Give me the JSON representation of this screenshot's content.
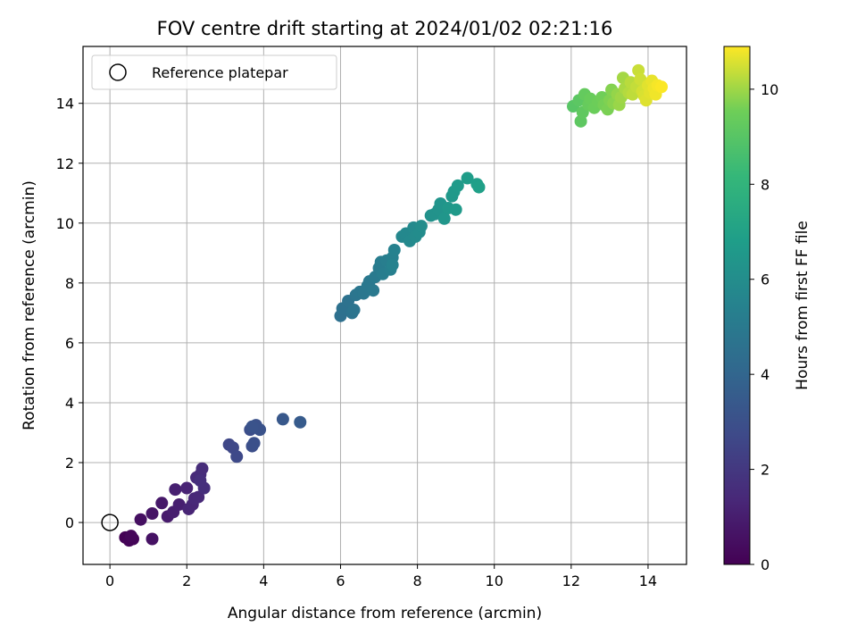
{
  "chart_data": {
    "type": "scatter",
    "title": "FOV centre drift starting at 2024/01/02 02:21:16",
    "xlabel": "Angular distance from reference (arcmin)",
    "ylabel": "Rotation from reference (arcmin)",
    "xlim": [
      -0.7,
      15.0
    ],
    "ylim": [
      -1.4,
      15.9
    ],
    "xticks": [
      0,
      2,
      4,
      6,
      8,
      10,
      12,
      14
    ],
    "yticks": [
      0,
      2,
      4,
      6,
      8,
      10,
      12,
      14
    ],
    "grid": true,
    "legend": {
      "placement": "top-left",
      "entries": [
        "Reference platepar"
      ]
    },
    "reference_point": {
      "x": 0,
      "y": 0
    },
    "colorbar": {
      "label": "Hours from first FF file",
      "range": [
        0,
        10.9
      ],
      "ticks": [
        0,
        2,
        4,
        6,
        8,
        10
      ],
      "colormap": "viridis"
    },
    "points": [
      {
        "x": 0.4,
        "y": -0.5,
        "h": 0.05
      },
      {
        "x": 0.5,
        "y": -0.6,
        "h": 0.1
      },
      {
        "x": 0.6,
        "y": -0.55,
        "h": 0.15
      },
      {
        "x": 0.55,
        "y": -0.45,
        "h": 0.2
      },
      {
        "x": 0.8,
        "y": 0.1,
        "h": 0.5
      },
      {
        "x": 1.1,
        "y": -0.55,
        "h": 0.6
      },
      {
        "x": 1.1,
        "y": 0.3,
        "h": 0.7
      },
      {
        "x": 1.35,
        "y": 0.65,
        "h": 0.8
      },
      {
        "x": 1.5,
        "y": 0.2,
        "h": 0.9
      },
      {
        "x": 1.65,
        "y": 0.35,
        "h": 1.0
      },
      {
        "x": 1.8,
        "y": 0.6,
        "h": 1.05
      },
      {
        "x": 1.7,
        "y": 1.1,
        "h": 1.1
      },
      {
        "x": 2.0,
        "y": 1.15,
        "h": 1.2
      },
      {
        "x": 2.05,
        "y": 0.45,
        "h": 1.25
      },
      {
        "x": 2.15,
        "y": 0.6,
        "h": 1.3
      },
      {
        "x": 2.2,
        "y": 0.8,
        "h": 1.35
      },
      {
        "x": 2.3,
        "y": 0.85,
        "h": 1.4
      },
      {
        "x": 2.25,
        "y": 1.5,
        "h": 1.45
      },
      {
        "x": 2.35,
        "y": 1.6,
        "h": 1.5
      },
      {
        "x": 2.4,
        "y": 1.8,
        "h": 1.55
      },
      {
        "x": 2.45,
        "y": 1.15,
        "h": 1.6
      },
      {
        "x": 2.35,
        "y": 1.4,
        "h": 1.65
      },
      {
        "x": 3.1,
        "y": 2.6,
        "h": 2.6
      },
      {
        "x": 3.2,
        "y": 2.5,
        "h": 2.65
      },
      {
        "x": 3.3,
        "y": 2.2,
        "h": 2.7
      },
      {
        "x": 3.65,
        "y": 3.1,
        "h": 2.9
      },
      {
        "x": 3.7,
        "y": 2.55,
        "h": 2.95
      },
      {
        "x": 3.75,
        "y": 2.65,
        "h": 3.0
      },
      {
        "x": 3.8,
        "y": 3.25,
        "h": 3.05
      },
      {
        "x": 3.9,
        "y": 3.1,
        "h": 3.1
      },
      {
        "x": 3.7,
        "y": 3.2,
        "h": 3.15
      },
      {
        "x": 4.5,
        "y": 3.45,
        "h": 3.35
      },
      {
        "x": 4.95,
        "y": 3.35,
        "h": 3.5
      },
      {
        "x": 6.0,
        "y": 6.9,
        "h": 4.5
      },
      {
        "x": 6.05,
        "y": 7.15,
        "h": 4.55
      },
      {
        "x": 6.2,
        "y": 7.4,
        "h": 4.6
      },
      {
        "x": 6.3,
        "y": 7.0,
        "h": 4.65
      },
      {
        "x": 6.35,
        "y": 7.1,
        "h": 4.7
      },
      {
        "x": 6.4,
        "y": 7.6,
        "h": 4.75
      },
      {
        "x": 6.5,
        "y": 7.7,
        "h": 4.8
      },
      {
        "x": 6.6,
        "y": 7.65,
        "h": 4.85
      },
      {
        "x": 6.7,
        "y": 7.9,
        "h": 4.9
      },
      {
        "x": 6.75,
        "y": 8.05,
        "h": 4.95
      },
      {
        "x": 6.85,
        "y": 7.75,
        "h": 5.0
      },
      {
        "x": 6.9,
        "y": 8.2,
        "h": 5.05
      },
      {
        "x": 7.0,
        "y": 8.5,
        "h": 5.1
      },
      {
        "x": 7.05,
        "y": 8.7,
        "h": 5.15
      },
      {
        "x": 7.1,
        "y": 8.3,
        "h": 5.2
      },
      {
        "x": 7.2,
        "y": 8.75,
        "h": 5.25
      },
      {
        "x": 7.3,
        "y": 8.45,
        "h": 5.3
      },
      {
        "x": 7.35,
        "y": 8.85,
        "h": 5.35
      },
      {
        "x": 7.4,
        "y": 9.1,
        "h": 5.4
      },
      {
        "x": 7.35,
        "y": 8.6,
        "h": 5.45
      },
      {
        "x": 7.6,
        "y": 9.55,
        "h": 5.7
      },
      {
        "x": 7.7,
        "y": 9.65,
        "h": 5.75
      },
      {
        "x": 7.8,
        "y": 9.4,
        "h": 5.8
      },
      {
        "x": 7.9,
        "y": 9.85,
        "h": 5.85
      },
      {
        "x": 7.95,
        "y": 9.55,
        "h": 5.9
      },
      {
        "x": 8.05,
        "y": 9.7,
        "h": 5.95
      },
      {
        "x": 8.1,
        "y": 9.9,
        "h": 6.0
      },
      {
        "x": 8.35,
        "y": 10.25,
        "h": 6.2
      },
      {
        "x": 8.45,
        "y": 10.3,
        "h": 6.25
      },
      {
        "x": 8.55,
        "y": 10.45,
        "h": 6.3
      },
      {
        "x": 8.6,
        "y": 10.65,
        "h": 6.35
      },
      {
        "x": 8.7,
        "y": 10.15,
        "h": 6.4
      },
      {
        "x": 8.8,
        "y": 10.5,
        "h": 6.45
      },
      {
        "x": 8.9,
        "y": 10.9,
        "h": 6.5
      },
      {
        "x": 8.95,
        "y": 11.05,
        "h": 6.55
      },
      {
        "x": 9.0,
        "y": 10.45,
        "h": 6.6
      },
      {
        "x": 9.05,
        "y": 11.25,
        "h": 6.65
      },
      {
        "x": 9.3,
        "y": 11.5,
        "h": 6.75
      },
      {
        "x": 9.55,
        "y": 11.3,
        "h": 6.85
      },
      {
        "x": 9.6,
        "y": 11.2,
        "h": 6.9
      },
      {
        "x": 12.05,
        "y": 13.9,
        "h": 9.0
      },
      {
        "x": 12.2,
        "y": 14.1,
        "h": 9.1
      },
      {
        "x": 12.25,
        "y": 13.4,
        "h": 9.15
      },
      {
        "x": 12.3,
        "y": 13.7,
        "h": 9.2
      },
      {
        "x": 12.35,
        "y": 14.3,
        "h": 9.3
      },
      {
        "x": 12.45,
        "y": 13.95,
        "h": 9.35
      },
      {
        "x": 12.5,
        "y": 14.15,
        "h": 9.4
      },
      {
        "x": 12.6,
        "y": 13.85,
        "h": 9.45
      },
      {
        "x": 12.7,
        "y": 14.05,
        "h": 9.5
      },
      {
        "x": 12.8,
        "y": 14.2,
        "h": 9.55
      },
      {
        "x": 12.85,
        "y": 13.95,
        "h": 9.6
      },
      {
        "x": 12.95,
        "y": 13.8,
        "h": 9.65
      },
      {
        "x": 13.0,
        "y": 14.1,
        "h": 9.7
      },
      {
        "x": 13.05,
        "y": 14.45,
        "h": 9.75
      },
      {
        "x": 13.1,
        "y": 14.0,
        "h": 9.8
      },
      {
        "x": 13.2,
        "y": 14.3,
        "h": 9.9
      },
      {
        "x": 13.25,
        "y": 13.95,
        "h": 9.95
      },
      {
        "x": 13.3,
        "y": 14.2,
        "h": 10.0
      },
      {
        "x": 13.35,
        "y": 14.85,
        "h": 10.05
      },
      {
        "x": 13.4,
        "y": 14.5,
        "h": 10.1
      },
      {
        "x": 13.5,
        "y": 14.35,
        "h": 10.2
      },
      {
        "x": 13.55,
        "y": 14.7,
        "h": 10.25
      },
      {
        "x": 13.6,
        "y": 14.3,
        "h": 10.3
      },
      {
        "x": 13.7,
        "y": 14.55,
        "h": 10.35
      },
      {
        "x": 13.75,
        "y": 15.1,
        "h": 10.4
      },
      {
        "x": 13.8,
        "y": 14.8,
        "h": 10.45
      },
      {
        "x": 13.85,
        "y": 14.4,
        "h": 10.5
      },
      {
        "x": 13.9,
        "y": 14.25,
        "h": 10.55
      },
      {
        "x": 13.95,
        "y": 14.1,
        "h": 10.6
      },
      {
        "x": 14.0,
        "y": 14.6,
        "h": 10.62
      },
      {
        "x": 14.05,
        "y": 14.35,
        "h": 10.65
      },
      {
        "x": 14.1,
        "y": 14.75,
        "h": 10.7
      },
      {
        "x": 14.15,
        "y": 14.5,
        "h": 10.75
      },
      {
        "x": 14.2,
        "y": 14.3,
        "h": 10.78
      },
      {
        "x": 14.25,
        "y": 14.6,
        "h": 10.82
      },
      {
        "x": 14.35,
        "y": 14.55,
        "h": 10.88
      }
    ]
  }
}
